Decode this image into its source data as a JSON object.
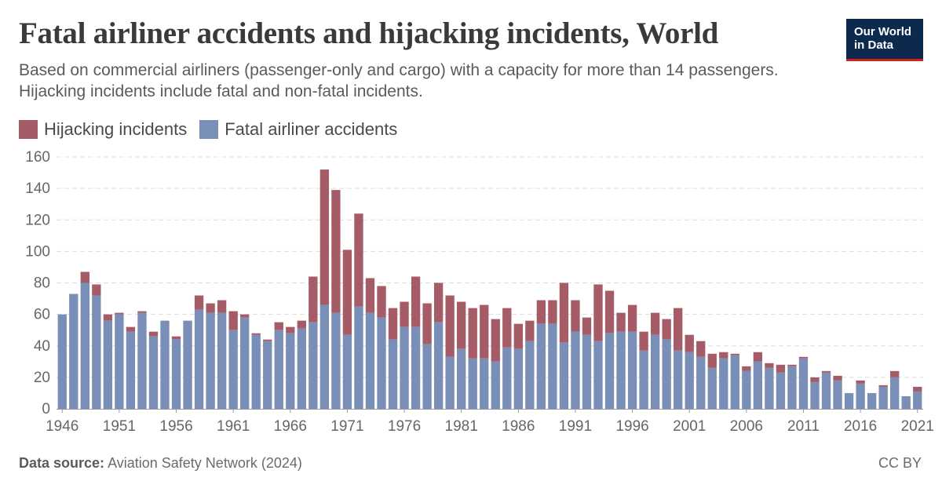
{
  "header": {
    "title": "Fatal airliner accidents and hijacking incidents, World",
    "subtitle": "Based on commercial airliners (passenger-only and cargo) with a capacity for more than 14 passengers. Hijacking incidents include fatal and non-fatal incidents.",
    "logo_line1": "Our World",
    "logo_line2": "in Data"
  },
  "footer": {
    "source_label": "Data source:",
    "source_text": "Aviation Safety Network (2024)",
    "license": "CC BY"
  },
  "colors": {
    "accidents": "#7a8fb8",
    "hijacking": "#a65c66",
    "logo_bg": "#0c2a4e",
    "logo_accent": "#ce261e"
  },
  "chart_data": {
    "type": "bar",
    "stacked": true,
    "ylim": [
      0,
      160
    ],
    "yticks": [
      0,
      20,
      40,
      60,
      80,
      100,
      120,
      140,
      160
    ],
    "xticks": [
      "1946",
      "1951",
      "1956",
      "1961",
      "1966",
      "1971",
      "1976",
      "1981",
      "1986",
      "1991",
      "1996",
      "2001",
      "2006",
      "2011",
      "2016",
      "2021"
    ],
    "legend_position": "top-left",
    "grid": true,
    "categories": [
      "1946",
      "1947",
      "1948",
      "1949",
      "1950",
      "1951",
      "1952",
      "1953",
      "1954",
      "1955",
      "1956",
      "1957",
      "1958",
      "1959",
      "1960",
      "1961",
      "1962",
      "1963",
      "1964",
      "1965",
      "1966",
      "1967",
      "1968",
      "1969",
      "1970",
      "1971",
      "1972",
      "1973",
      "1974",
      "1975",
      "1976",
      "1977",
      "1978",
      "1979",
      "1980",
      "1981",
      "1982",
      "1983",
      "1984",
      "1985",
      "1986",
      "1987",
      "1988",
      "1989",
      "1990",
      "1991",
      "1992",
      "1993",
      "1994",
      "1995",
      "1996",
      "1997",
      "1998",
      "1999",
      "2000",
      "2001",
      "2002",
      "2003",
      "2004",
      "2005",
      "2006",
      "2007",
      "2008",
      "2009",
      "2010",
      "2011",
      "2012",
      "2013",
      "2014",
      "2015",
      "2016",
      "2017",
      "2018",
      "2019",
      "2020",
      "2021"
    ],
    "series": [
      {
        "name": "Fatal airliner accidents",
        "values": [
          60,
          73,
          80,
          72,
          56,
          60,
          49,
          61,
          46,
          56,
          44,
          56,
          63,
          61,
          61,
          50,
          58,
          47,
          43,
          50,
          48,
          51,
          55,
          66,
          61,
          47,
          65,
          61,
          58,
          44,
          52,
          52,
          41,
          55,
          33,
          38,
          32,
          32,
          30,
          39,
          38,
          43,
          54,
          54,
          42,
          49,
          47,
          43,
          48,
          49,
          49,
          37,
          47,
          44,
          37,
          36,
          33,
          26,
          32,
          34,
          24,
          30,
          26,
          23,
          27,
          32,
          17,
          23,
          18,
          10,
          16,
          10,
          14,
          20,
          8,
          11
        ]
      },
      {
        "name": "Hijacking incidents",
        "values": [
          0,
          0,
          7,
          7,
          4,
          1,
          3,
          1,
          3,
          0,
          2,
          0,
          9,
          6,
          8,
          12,
          2,
          1,
          1,
          5,
          4,
          5,
          29,
          86,
          78,
          54,
          59,
          22,
          20,
          20,
          16,
          32,
          26,
          25,
          39,
          30,
          32,
          34,
          27,
          25,
          16,
          13,
          15,
          15,
          38,
          20,
          11,
          36,
          27,
          12,
          17,
          12,
          14,
          13,
          27,
          11,
          10,
          9,
          4,
          1,
          3,
          6,
          3,
          5,
          1,
          1,
          3,
          1,
          3,
          0,
          2,
          0,
          1,
          4,
          0,
          3
        ]
      }
    ]
  }
}
